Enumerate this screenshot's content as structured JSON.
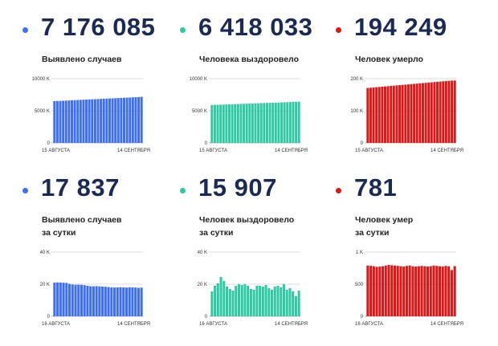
{
  "colors": {
    "blue": "#3d6ef7",
    "teal": "#2fcaa4",
    "red": "#e01515",
    "text": "#1a2a55"
  },
  "panels": [
    {
      "id": "cases-total",
      "value": "7 176 085",
      "label": [
        "Выявлено случаев"
      ],
      "bullet": "blue"
    },
    {
      "id": "recovered-total",
      "value": "6 418 033",
      "label": [
        "Человека выздоровело"
      ],
      "bullet": "teal"
    },
    {
      "id": "deaths-total",
      "value": "194 249",
      "label": [
        "Человек умерло"
      ],
      "bullet": "red"
    },
    {
      "id": "cases-daily",
      "value": "17 837",
      "label": [
        "Выявлено случаев",
        "за сутки"
      ],
      "bullet": "blue"
    },
    {
      "id": "recovered-daily",
      "value": "15 907",
      "label": [
        "Человек выздоровело",
        "за сутки"
      ],
      "bullet": "teal"
    },
    {
      "id": "deaths-daily",
      "value": "781",
      "label": [
        "Человек умер",
        "за сутки"
      ],
      "bullet": "red"
    }
  ],
  "chart_data": [
    {
      "type": "bar",
      "title": "Выявлено случаев",
      "color": "blue",
      "ylim": [
        0,
        10000000
      ],
      "yticks": [
        0,
        5000000,
        10000000
      ],
      "ytick_labels": [
        "0",
        "5000 K",
        "10000 K"
      ],
      "x_start": "15 АВГУСТА",
      "x_end": "14 СЕНТЯБРЯ",
      "values": [
        6500000,
        6522000,
        6544000,
        6566000,
        6588000,
        6610000,
        6632000,
        6654000,
        6676000,
        6698000,
        6720000,
        6742000,
        6764000,
        6786000,
        6808000,
        6830000,
        6852000,
        6874000,
        6896000,
        6918000,
        6940000,
        6962000,
        6984000,
        7006000,
        7028000,
        7050000,
        7072000,
        7094000,
        7116000,
        7138000,
        7176085
      ]
    },
    {
      "type": "bar",
      "title": "Человека выздоровело",
      "color": "teal",
      "ylim": [
        0,
        10000000
      ],
      "yticks": [
        0,
        5000000,
        10000000
      ],
      "ytick_labels": [
        "0",
        "5000 K",
        "10000 K"
      ],
      "x_start": "15 АВГУСТА",
      "x_end": "14 СЕНТЯБРЯ",
      "values": [
        5900000,
        5917000,
        5934000,
        5951000,
        5968000,
        5985000,
        6002000,
        6019000,
        6036000,
        6053000,
        6070000,
        6087000,
        6104000,
        6121000,
        6138000,
        6155000,
        6172000,
        6189000,
        6206000,
        6223000,
        6240000,
        6257000,
        6274000,
        6291000,
        6308000,
        6325000,
        6342000,
        6359000,
        6376000,
        6393000,
        6418033
      ]
    },
    {
      "type": "bar",
      "title": "Человек умерло",
      "color": "red",
      "ylim": [
        0,
        200000
      ],
      "yticks": [
        0,
        100000,
        200000
      ],
      "ytick_labels": [
        "0",
        "100 K",
        "200 K"
      ],
      "x_start": "15 АВГУСТА",
      "x_end": "14 СЕНТЯБРЯ",
      "values": [
        171000,
        171800,
        172600,
        173400,
        174200,
        175000,
        175800,
        176600,
        177400,
        178200,
        179000,
        179800,
        180600,
        181400,
        182200,
        183000,
        183800,
        184600,
        185400,
        186200,
        187000,
        187800,
        188600,
        189400,
        190200,
        191000,
        191800,
        192600,
        193400,
        194000,
        194249
      ]
    },
    {
      "type": "bar",
      "title": "Выявлено случаев за сутки",
      "color": "blue",
      "ylim": [
        0,
        40000
      ],
      "yticks": [
        0,
        20000,
        40000
      ],
      "ytick_labels": [
        "0",
        "20 K",
        "40 K"
      ],
      "x_start": "16 АВГУСТА",
      "x_end": "14 СЕНТЯБРЯ",
      "values": [
        21000,
        21100,
        21000,
        20900,
        20800,
        20200,
        19800,
        19600,
        19700,
        19600,
        19400,
        19000,
        18700,
        18700,
        18800,
        18600,
        18500,
        18400,
        18200,
        18000,
        17900,
        18000,
        18100,
        18000,
        17900,
        18100,
        18000,
        17900,
        17700,
        17837
      ]
    },
    {
      "type": "bar",
      "title": "Человек выздоровело за сутки",
      "color": "teal",
      "ylim": [
        0,
        40000
      ],
      "yticks": [
        0,
        20000,
        40000
      ],
      "ytick_labels": [
        "0",
        "20 K",
        "40 K"
      ],
      "x_start": "16 АВГУСТА",
      "x_end": "14 СЕНТЯБРЯ",
      "values": [
        15500,
        19000,
        20500,
        24500,
        22000,
        18500,
        17000,
        16000,
        19000,
        20000,
        19500,
        20000,
        19000,
        17000,
        16500,
        19000,
        19000,
        18500,
        19500,
        17500,
        16500,
        18500,
        19000,
        18000,
        20000,
        16500,
        17500,
        15500,
        12500,
        15907
      ]
    },
    {
      "type": "bar",
      "title": "Человек умер за сутки",
      "color": "red",
      "ylim": [
        0,
        1000
      ],
      "yticks": [
        0,
        500,
        1000
      ],
      "ytick_labels": [
        "0",
        "500",
        "1 K"
      ],
      "x_start": "16 АВГУСТА",
      "x_end": "14 СЕНТЯБРЯ",
      "values": [
        790,
        785,
        780,
        770,
        775,
        780,
        790,
        800,
        795,
        790,
        785,
        780,
        775,
        785,
        790,
        780,
        775,
        780,
        785,
        780,
        775,
        780,
        790,
        785,
        780,
        775,
        785,
        780,
        720,
        781
      ]
    }
  ]
}
